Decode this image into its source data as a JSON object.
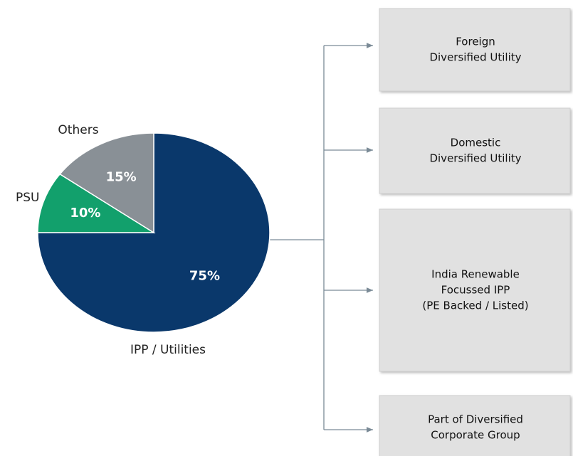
{
  "chart_data": {
    "type": "pie",
    "categories": [
      "IPP / Utilities",
      "PSU",
      "Others"
    ],
    "values": [
      75,
      10,
      15
    ],
    "value_labels": [
      "75%",
      "10%",
      "15%"
    ],
    "colors": [
      "#0a386b",
      "#12a06c",
      "#899096"
    ]
  },
  "diagram": {
    "boxes": [
      {
        "lines": [
          "Foreign",
          "Diversified Utility"
        ]
      },
      {
        "lines": [
          "Domestic",
          "Diversified Utility"
        ]
      },
      {
        "lines": [
          "India Renewable",
          "Focussed IPP",
          "(PE Backed / Listed)"
        ]
      },
      {
        "lines": [
          "Part of Diversified",
          "Corporate Group"
        ]
      }
    ]
  }
}
